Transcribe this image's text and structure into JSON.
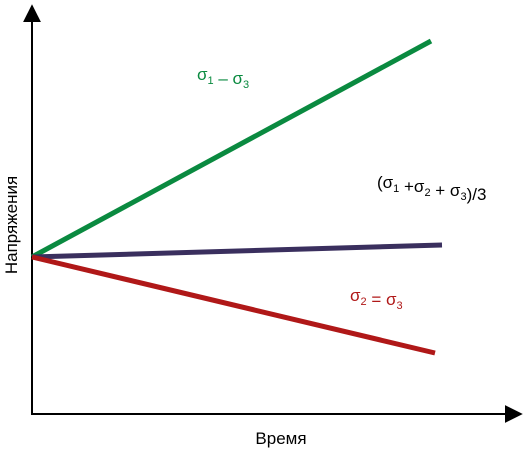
{
  "axes": {
    "x_title": "Время",
    "y_title": "Напряжения"
  },
  "colors": {
    "axis": "#000000",
    "green": "#0a8a40",
    "purple": "#3a2f5e",
    "red": "#b01818",
    "label_black": "#000000"
  },
  "lines": [
    {
      "name": "deviator",
      "color_key": "green",
      "label_parts": [
        {
          "text": "σ"
        },
        {
          "text": "1",
          "sub": true
        },
        {
          "text": " – σ"
        },
        {
          "text": "3",
          "sub": true
        }
      ]
    },
    {
      "name": "mean",
      "color_key": "label_black",
      "line_color_key": "purple",
      "label_parts": [
        {
          "text": "(σ"
        },
        {
          "text": "1",
          "sub": true
        },
        {
          "text": " +σ"
        },
        {
          "text": "2",
          "sub": true
        },
        {
          "text": " + σ"
        },
        {
          "text": "3",
          "sub": true
        },
        {
          "text": ")/3"
        }
      ]
    },
    {
      "name": "lateral",
      "color_key": "red",
      "label_parts": [
        {
          "text": "σ"
        },
        {
          "text": "2",
          "sub": true
        },
        {
          "text": " = σ"
        },
        {
          "text": "3",
          "sub": true
        }
      ]
    }
  ]
}
